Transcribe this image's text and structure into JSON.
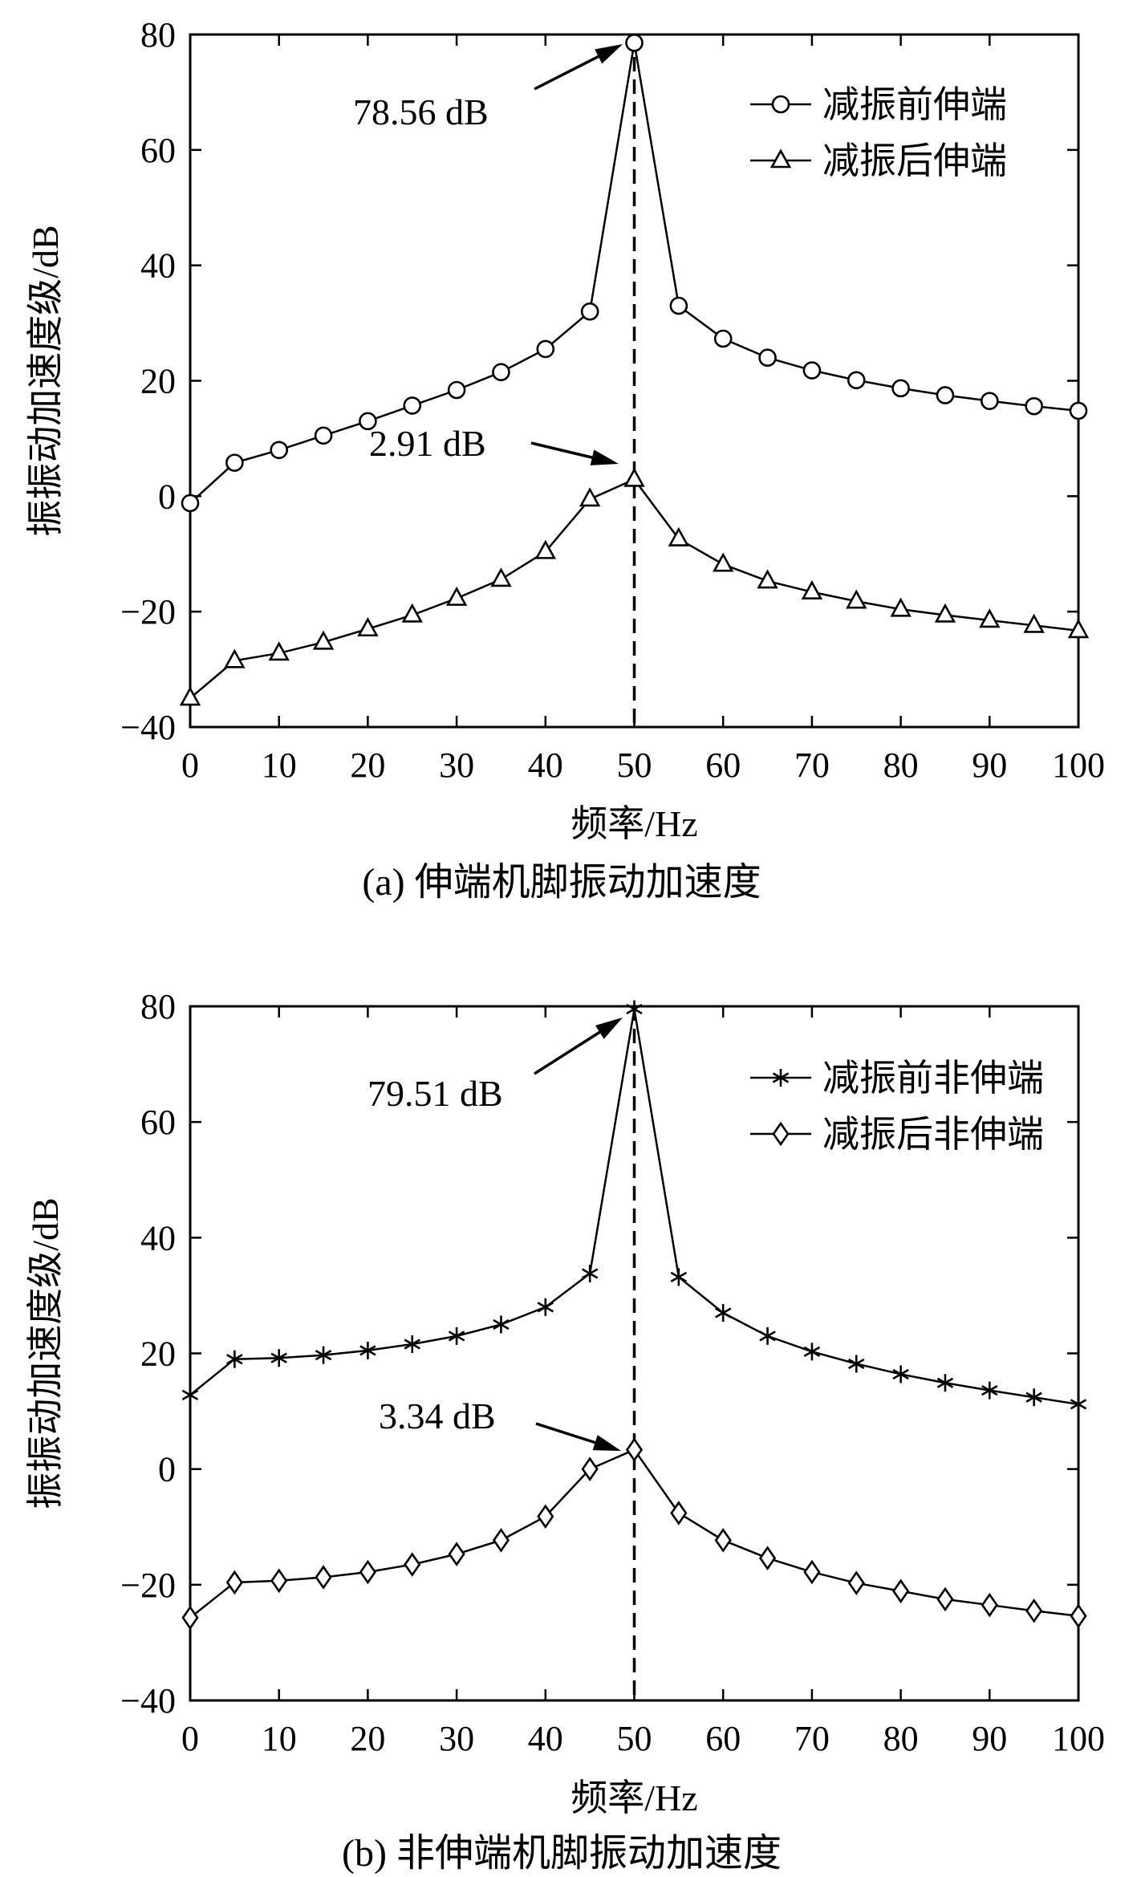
{
  "chart_data": [
    {
      "type": "line",
      "caption": "(a) 伸端机脚振动加速度",
      "xlabel": "频率/Hz",
      "ylabel": "振振动加速度级/dB",
      "xlim": [
        0,
        100
      ],
      "ylim": [
        -40,
        80
      ],
      "xticks": [
        "0",
        "10",
        "20",
        "30",
        "40",
        "50",
        "60",
        "70",
        "80",
        "90",
        "100"
      ],
      "yticks": [
        "80",
        "60",
        "40",
        "20",
        "0",
        "−20",
        "−40"
      ],
      "legend_position": "top-right",
      "x": [
        0,
        5,
        10,
        15,
        20,
        25,
        30,
        35,
        40,
        45,
        50,
        55,
        60,
        65,
        70,
        75,
        80,
        85,
        90,
        95,
        100
      ],
      "series": [
        {
          "name": "减振前伸端",
          "marker": "circle",
          "values": [
            -1.2,
            5.8,
            8.0,
            10.5,
            13.0,
            15.7,
            18.4,
            21.5,
            25.5,
            32.0,
            78.56,
            33.0,
            27.3,
            24.0,
            21.8,
            20.1,
            18.7,
            17.5,
            16.5,
            15.6,
            14.8
          ]
        },
        {
          "name": "减振后伸端",
          "marker": "triangle",
          "values": [
            -35.0,
            -28.5,
            -27.2,
            -25.3,
            -23.0,
            -20.6,
            -17.7,
            -14.4,
            -9.6,
            -0.5,
            2.91,
            -7.4,
            -11.8,
            -14.7,
            -16.6,
            -18.2,
            -19.6,
            -20.6,
            -21.5,
            -22.4,
            -23.3
          ]
        }
      ],
      "annotations": [
        {
          "text": "78.56 dB",
          "x": 50,
          "y": 78.56
        },
        {
          "text": "2.91 dB",
          "x": 50,
          "y": 2.91
        }
      ],
      "reference_line": {
        "x": 50,
        "style": "dashed"
      }
    },
    {
      "type": "line",
      "caption": "(b) 非伸端机脚振动加速度",
      "xlabel": "频率/Hz",
      "ylabel": "振振动加速度级/dB",
      "xlim": [
        0,
        100
      ],
      "ylim": [
        -40,
        80
      ],
      "xticks": [
        "0",
        "10",
        "20",
        "30",
        "40",
        "50",
        "60",
        "70",
        "80",
        "90",
        "100"
      ],
      "yticks": [
        "80",
        "60",
        "40",
        "20",
        "0",
        "−20",
        "−40"
      ],
      "legend_position": "top-right",
      "x": [
        0,
        5,
        10,
        15,
        20,
        25,
        30,
        35,
        40,
        45,
        50,
        55,
        60,
        65,
        70,
        75,
        80,
        85,
        90,
        95,
        100
      ],
      "series": [
        {
          "name": "减振前非伸端",
          "marker": "asterisk",
          "values": [
            12.8,
            19.0,
            19.2,
            19.7,
            20.5,
            21.6,
            23.0,
            25.0,
            28.0,
            33.8,
            79.51,
            33.2,
            27.0,
            23.0,
            20.3,
            18.2,
            16.4,
            14.9,
            13.6,
            12.4,
            11.2
          ]
        },
        {
          "name": "减振后非伸端",
          "marker": "diamond",
          "values": [
            -25.7,
            -19.6,
            -19.3,
            -18.7,
            -17.8,
            -16.5,
            -14.7,
            -12.3,
            -8.2,
            0.0,
            3.34,
            -7.6,
            -12.3,
            -15.4,
            -17.8,
            -19.7,
            -21.1,
            -22.5,
            -23.5,
            -24.5,
            -25.4
          ]
        }
      ],
      "annotations": [
        {
          "text": "79.51 dB",
          "x": 50,
          "y": 79.51
        },
        {
          "text": "3.34 dB",
          "x": 50,
          "y": 3.34
        }
      ],
      "reference_line": {
        "x": 50,
        "style": "dashed"
      }
    }
  ]
}
